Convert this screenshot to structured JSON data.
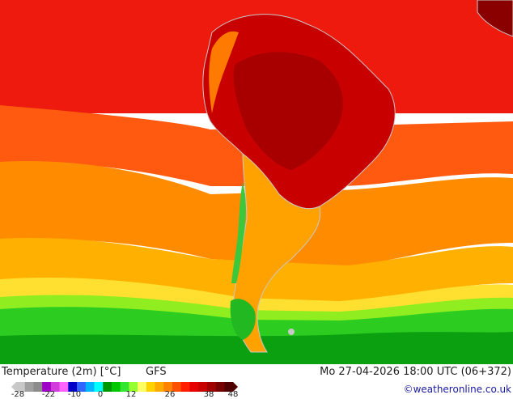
{
  "map": {
    "variable_title": "Temperature (2m) [°C]",
    "model": "GFS",
    "datetime": "Mo 27-04-2026 18:00 UTC (06+372)",
    "credit": "©weatheronline.co.uk",
    "region": "South America",
    "colorbar": {
      "ticks": [
        "-28",
        "-22",
        "-10",
        "0",
        "12",
        "26",
        "38",
        "48"
      ],
      "colors": [
        "#c8c8c8",
        "#a0a0a0",
        "#8c8c8c",
        "#a000c8",
        "#d23cdc",
        "#ff64ff",
        "#0000c8",
        "#3264ff",
        "#00b4ff",
        "#00ffff",
        "#009600",
        "#00c800",
        "#32e632",
        "#96ff32",
        "#ffff64",
        "#ffd200",
        "#ffaa00",
        "#ff8200",
        "#ff5000",
        "#ff1e00",
        "#e60000",
        "#c80000",
        "#a00000",
        "#780000",
        "#500000"
      ]
    },
    "colors": {
      "ocean_hot": "#ee0a0a",
      "land_hot": "#cc0000",
      "land_outline": "#c8c8c8",
      "credit": "#1a1aa0"
    }
  }
}
